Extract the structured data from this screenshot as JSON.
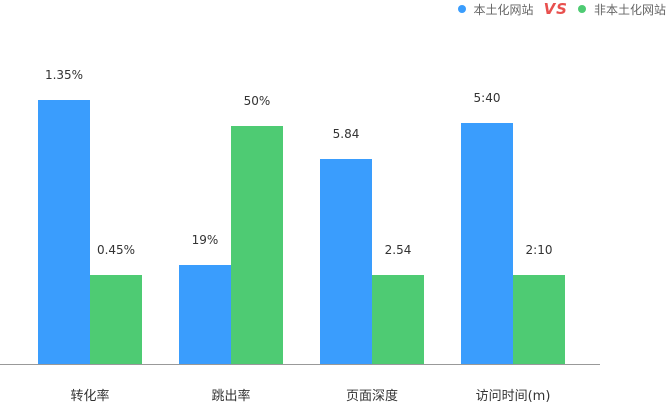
{
  "legend": {
    "series_a": "本土化网站",
    "vs": "VS",
    "series_b": "非本土化网站"
  },
  "colors": {
    "series_a": "#3a9dfd",
    "series_b": "#4ecb73",
    "vs": "#e8504e",
    "axis": "#999999",
    "label": "#333333"
  },
  "chart_data": {
    "type": "bar",
    "title": "",
    "xlabel": "",
    "ylabel": "",
    "categories": [
      "转化率",
      "跳出率",
      "页面深度",
      "访问时间(m)"
    ],
    "series": [
      {
        "name": "本土化网站",
        "values": [
          1.35,
          19,
          5.84,
          340
        ],
        "labels": [
          "1.35%",
          "19%",
          "5.84",
          "5:40"
        ],
        "visual_fraction": [
          0.8,
          0.3,
          0.62,
          0.73
        ]
      },
      {
        "name": "非本土化网站",
        "values": [
          0.45,
          50,
          2.54,
          130
        ],
        "labels": [
          "0.45%",
          "50%",
          "2.54",
          "2:10"
        ],
        "visual_fraction": [
          0.27,
          0.72,
          0.27,
          0.27
        ]
      }
    ],
    "grid": false,
    "legend_position": "top-right"
  }
}
